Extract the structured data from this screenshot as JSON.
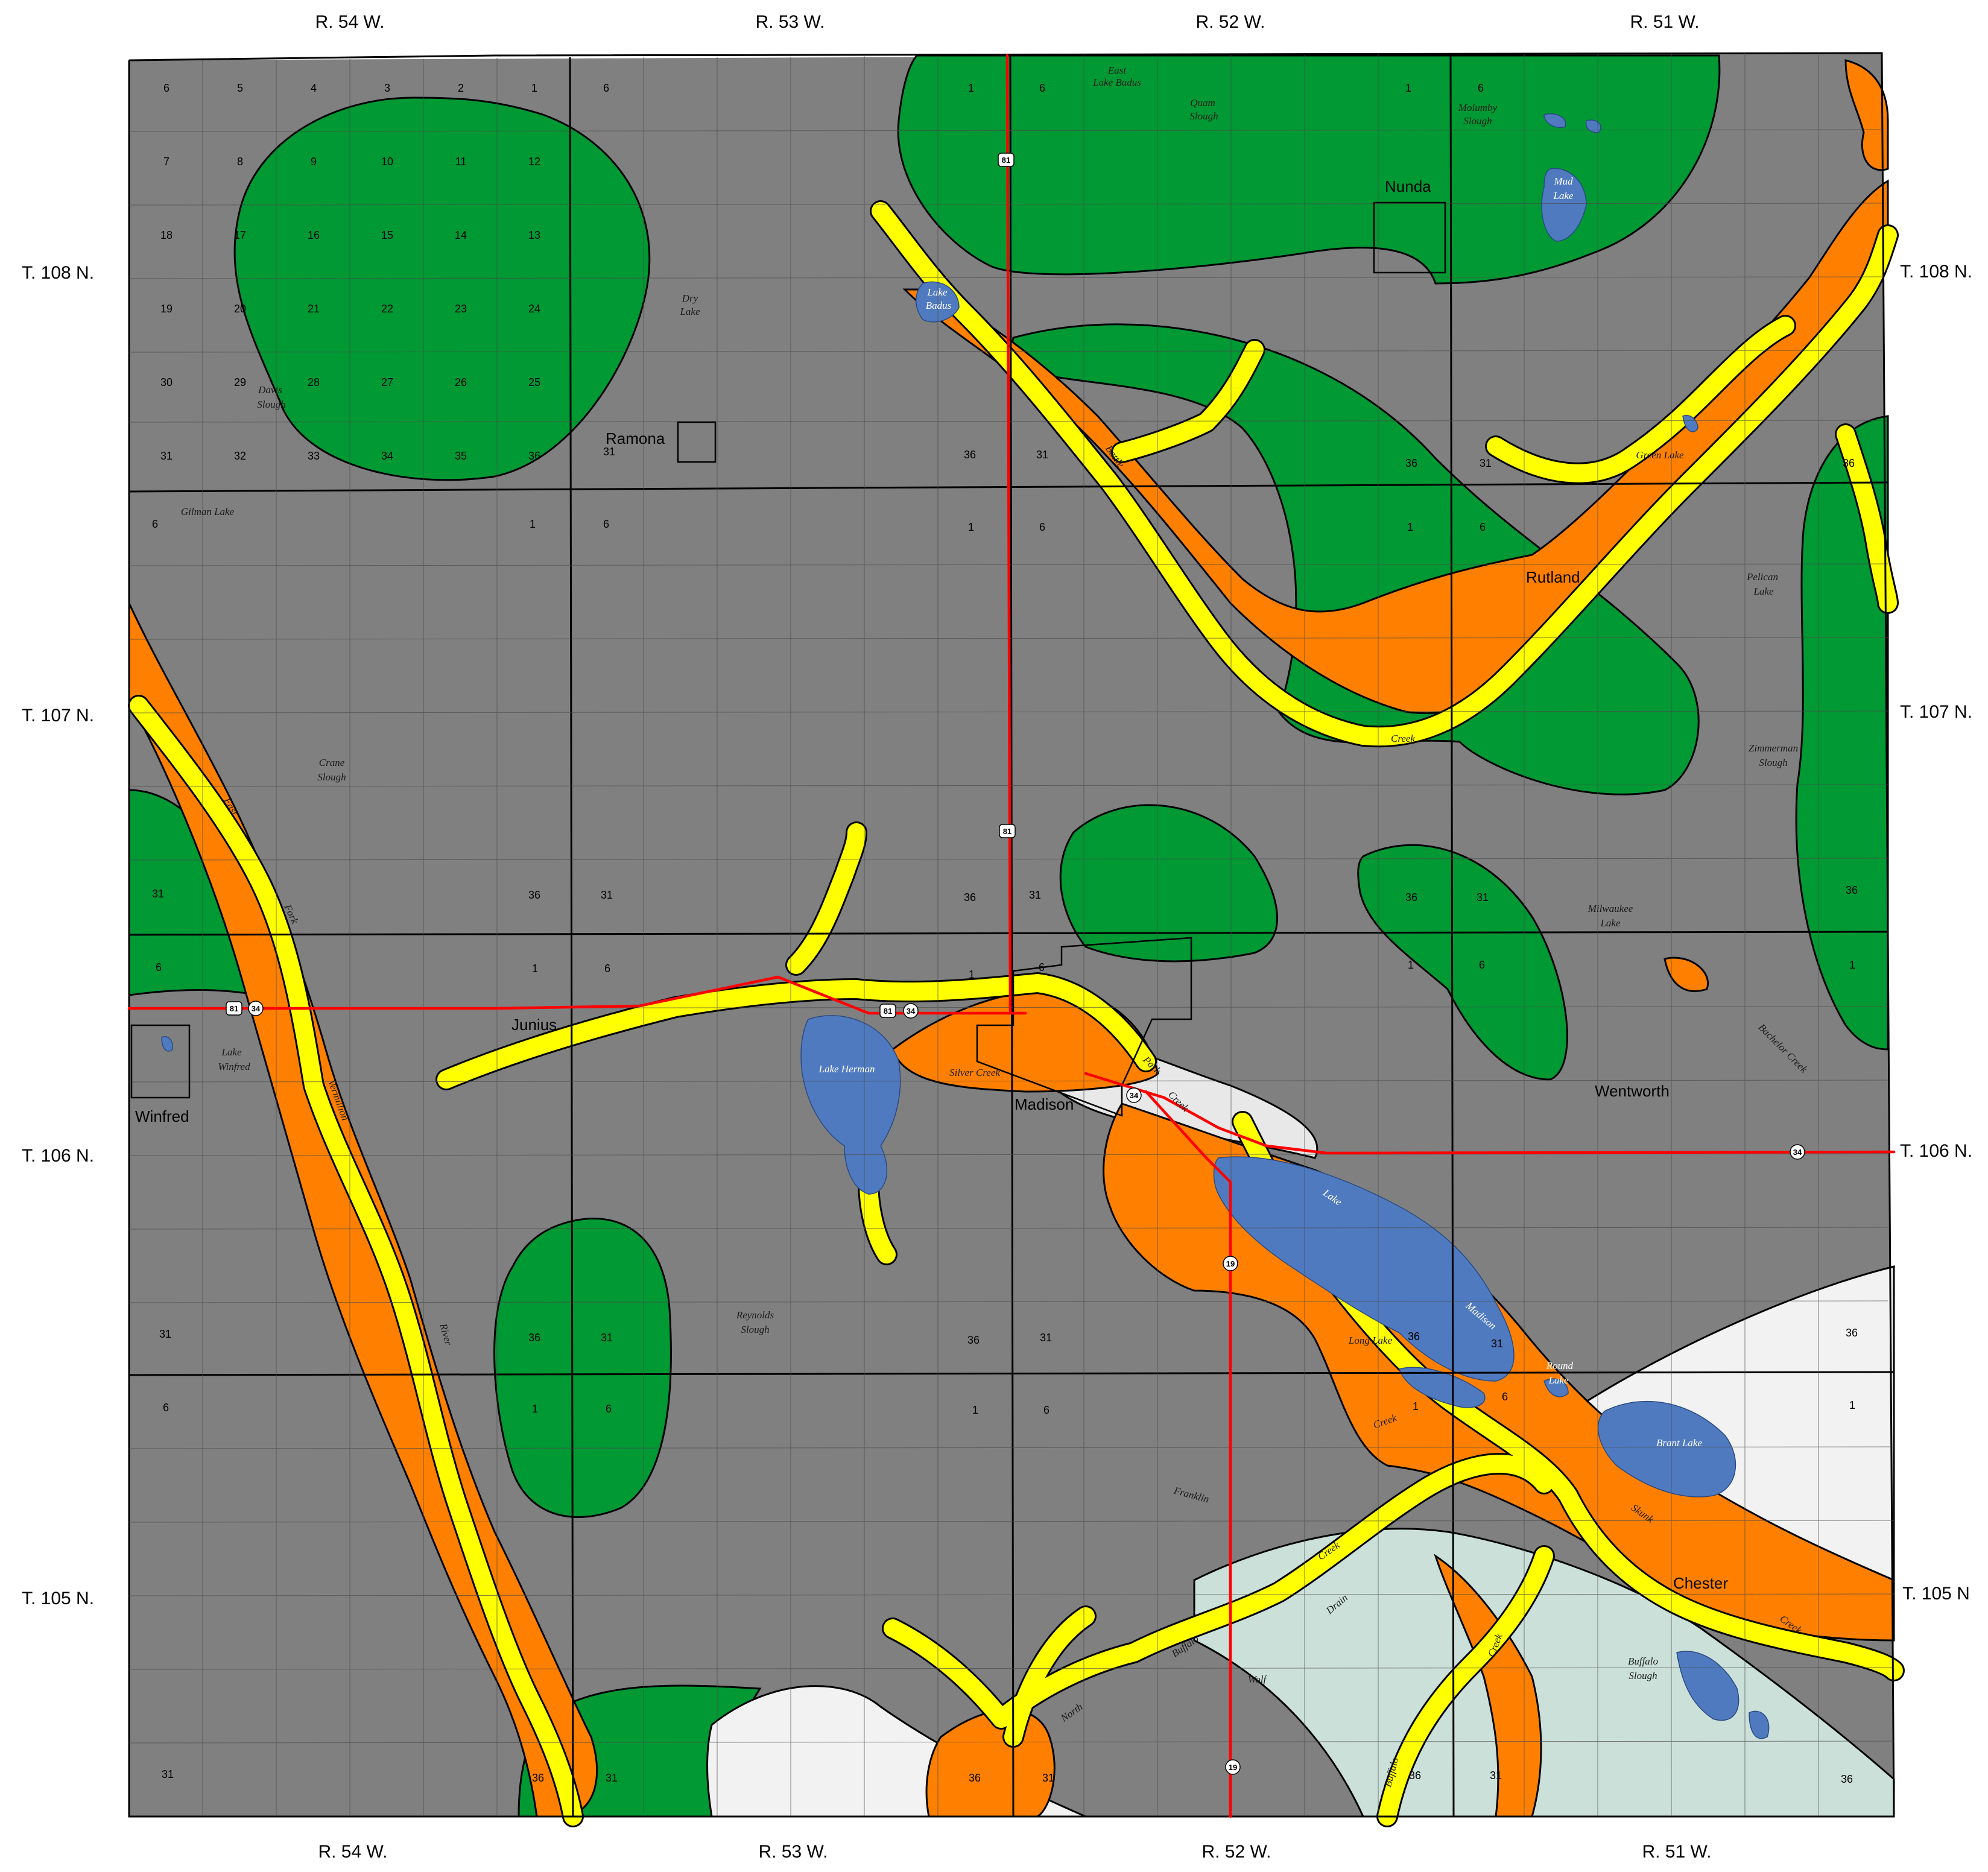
{
  "ranges_top": [
    "R. 54 W.",
    "R. 53 W.",
    "R. 52 W.",
    "R. 51 W."
  ],
  "ranges_bottom": [
    "R. 54 W.",
    "R. 53 W.",
    "R. 52 W.",
    "R. 51 W."
  ],
  "townships_left": [
    "T. 108 N.",
    "T. 107 N.",
    "T. 106 N.",
    "T. 105 N."
  ],
  "townships_right": [
    "T. 108 N.",
    "T. 107 N.",
    "T. 106 N.",
    "T. 105 N"
  ],
  "towns": {
    "nunda": "Nunda",
    "ramona": "Ramona",
    "rutland": "Rutland",
    "junius": "Junius",
    "madison": "Madison",
    "wentworth": "Wentworth",
    "winfred": "Winfred",
    "chester": "Chester"
  },
  "water_features": {
    "east_lake_badus_1": "East",
    "east_lake_badus_2": "Lake Badus",
    "quam_1": "Quam",
    "quam_2": "Slough",
    "molumby_1": "Molumby",
    "molumby_2": "Slough",
    "mud_lake_1": "Mud",
    "mud_lake_2": "Lake",
    "lake_badus_1": "Lake",
    "lake_badus_2": "Badus",
    "dry_lake_1": "Dry",
    "dry_lake_2": "Lake",
    "davis_1": "Davis",
    "davis_2": "Slough",
    "gilman": "Gilman Lake",
    "green_lake": "Green Lake",
    "pelican_1": "Pelican",
    "pelican_2": "Lake",
    "crane_1": "Crane",
    "crane_2": "Slough",
    "zimmerman_1": "Zimmerman",
    "zimmerman_2": "Slough",
    "milwaukee_1": "Milwaukee",
    "milwaukee_2": "Lake",
    "bachelor_creek": "Bachelor Creek",
    "lake_winfred_1": "Lake",
    "lake_winfred_2": "Winfred",
    "lake_herman": "Lake Herman",
    "silver_creek": "Silver Creek",
    "reynolds_1": "Reynolds",
    "reynolds_2": "Slough",
    "lake_madison_1": "Lake",
    "lake_madison_2": "Madison",
    "long_lake": "Long Lake",
    "round_lake_1": "Round",
    "round_lake_2": "Lake",
    "brant_lake": "Brant Lake",
    "buffalo_slough_1": "Buffalo",
    "buffalo_slough_2": "Slough",
    "battle": "Battle",
    "creek_battle": "Creek",
    "east": "East",
    "fork": "Fork",
    "vermillion": "Vermillion",
    "river": "River",
    "park": "Park",
    "park_creek": "Creek",
    "creek_long": "Creek",
    "franklin": "Franklin",
    "skunk": "Skunk",
    "skunk_creek": "Creek",
    "creek_drain": "Creek",
    "drain": "Drain",
    "north": "North",
    "buffalo": "Buffalo",
    "wolf": "Wolf",
    "creek_buffalo": "Creek",
    "buffalo_lower": "Buffalo"
  },
  "route_shields": {
    "us81": "81",
    "sd34": "34",
    "sd19": "19"
  },
  "section_numbers_t108_r54": [
    [
      "6",
      "5",
      "4",
      "3",
      "2",
      "1"
    ],
    [
      "7",
      "8",
      "9",
      "10",
      "11",
      "12"
    ],
    [
      "18",
      "17",
      "16",
      "15",
      "14",
      "13"
    ],
    [
      "19",
      "20",
      "21",
      "22",
      "23",
      "24"
    ],
    [
      "30",
      "29",
      "28",
      "27",
      "26",
      "25"
    ],
    [
      "31",
      "32",
      "33",
      "34",
      "35",
      "36"
    ]
  ],
  "corner_sections": {
    "a6": "6",
    "a1": "1",
    "a36": "36",
    "a31": "31"
  },
  "colors": {
    "upland": "#808080",
    "green_unit": "#009933",
    "orange_unit": "#ff8000",
    "yellow_unit": "#ffff00",
    "water": "#4f7ac0",
    "white_unit": "#f0f0f0",
    "pale_unit": "#cce0da",
    "road": "#ff0000"
  }
}
